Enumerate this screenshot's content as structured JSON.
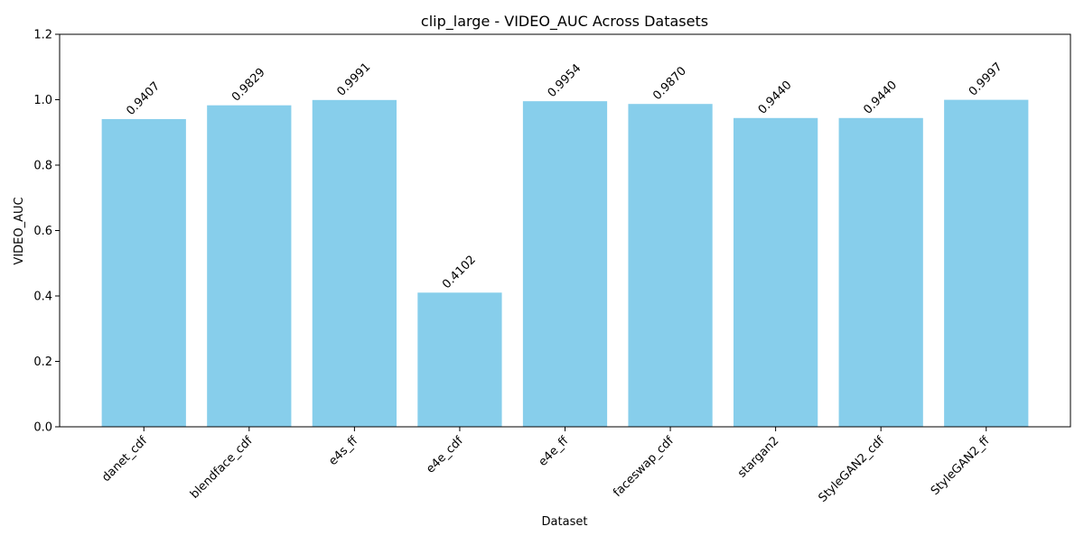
{
  "chart_data": {
    "type": "bar",
    "title": "clip_large - VIDEO_AUC Across Datasets",
    "xlabel": "Dataset",
    "ylabel": "VIDEO_AUC",
    "categories": [
      "danet_cdf",
      "blendface_cdf",
      "e4s_ff",
      "e4e_cdf",
      "e4e_ff",
      "faceswap_cdf",
      "stargan2",
      "StyleGAN2_cdf",
      "StyleGAN2_ff"
    ],
    "values": [
      0.9407,
      0.9829,
      0.9991,
      0.4102,
      0.9954,
      0.987,
      0.944,
      0.944,
      0.9997
    ],
    "value_labels": [
      "0.9407",
      "0.9829",
      "0.9991",
      "0.4102",
      "0.9954",
      "0.9870",
      "0.9440",
      "0.9440",
      "0.9997"
    ],
    "ylim": [
      0,
      1.2
    ],
    "yticks": [
      0.0,
      0.2,
      0.4,
      0.6,
      0.8,
      1.0,
      1.2
    ],
    "ytick_labels": [
      "0.0",
      "0.2",
      "0.4",
      "0.6",
      "0.8",
      "1.0",
      "1.2"
    ],
    "grid": false,
    "legend": "none",
    "bar_color": "#87ceeb"
  }
}
